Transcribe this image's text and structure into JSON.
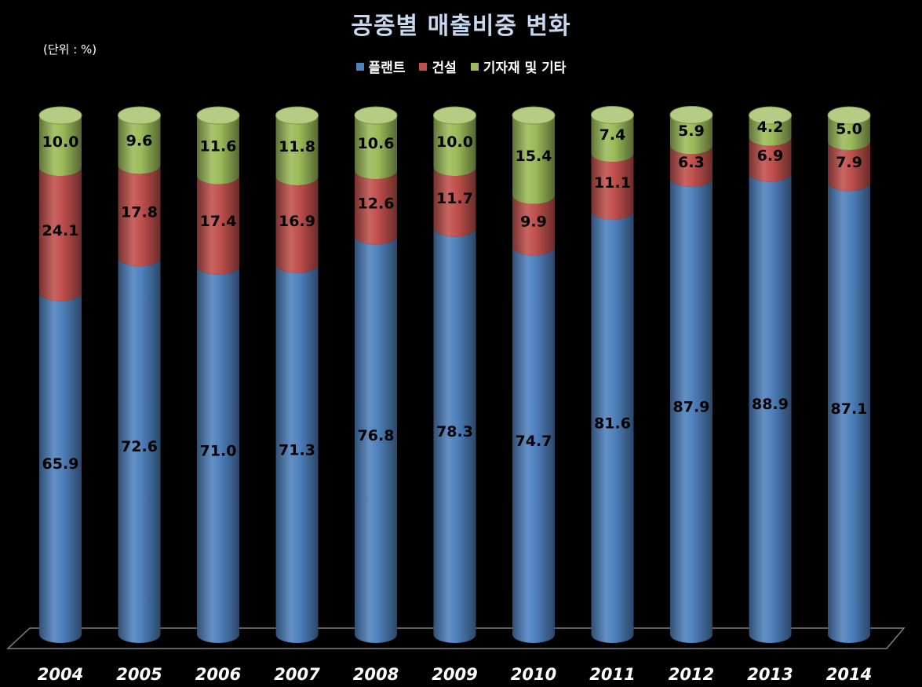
{
  "chart_data": {
    "type": "bar",
    "stacked": true,
    "title": "공종별 매출비중 변화",
    "unit_note": "(단위 : %)",
    "legend_position": "top",
    "categories": [
      "2004",
      "2005",
      "2006",
      "2007",
      "2008",
      "2009",
      "2010",
      "2011",
      "2012",
      "2013",
      "2014"
    ],
    "series": [
      {
        "name": "플랜트",
        "color": "#4f81bd",
        "values": [
          65.9,
          72.6,
          71.0,
          71.3,
          76.8,
          78.3,
          74.7,
          81.6,
          87.9,
          88.9,
          87.1
        ],
        "labels": [
          "65.9",
          "72.6",
          "71.0",
          "71.3",
          "76.8",
          "78.3",
          "74.7",
          "81.6",
          "87.9",
          "88.9",
          "87.1"
        ]
      },
      {
        "name": "건설",
        "color": "#c0504d",
        "values": [
          24.1,
          17.8,
          17.4,
          16.9,
          12.6,
          11.7,
          9.9,
          11.1,
          6.3,
          6.9,
          7.9
        ],
        "labels": [
          "24.1",
          "17.8",
          "17.4",
          "16.9",
          "12.6",
          "11.7",
          "9.9",
          "11.1",
          "6.3",
          "6.9",
          "7.9"
        ]
      },
      {
        "name": "기자재 및 기타",
        "color": "#9bbb59",
        "values": [
          10.0,
          9.6,
          11.6,
          11.8,
          10.6,
          10.0,
          15.4,
          7.4,
          5.9,
          4.2,
          5.0
        ],
        "labels": [
          "10.0",
          "9.6",
          "11.6",
          "11.8",
          "10.6",
          "10.0",
          "15.4",
          "7.4",
          "5.9",
          "4.2",
          "5.0"
        ]
      }
    ],
    "ylim": [
      0,
      100
    ],
    "grid": false
  }
}
